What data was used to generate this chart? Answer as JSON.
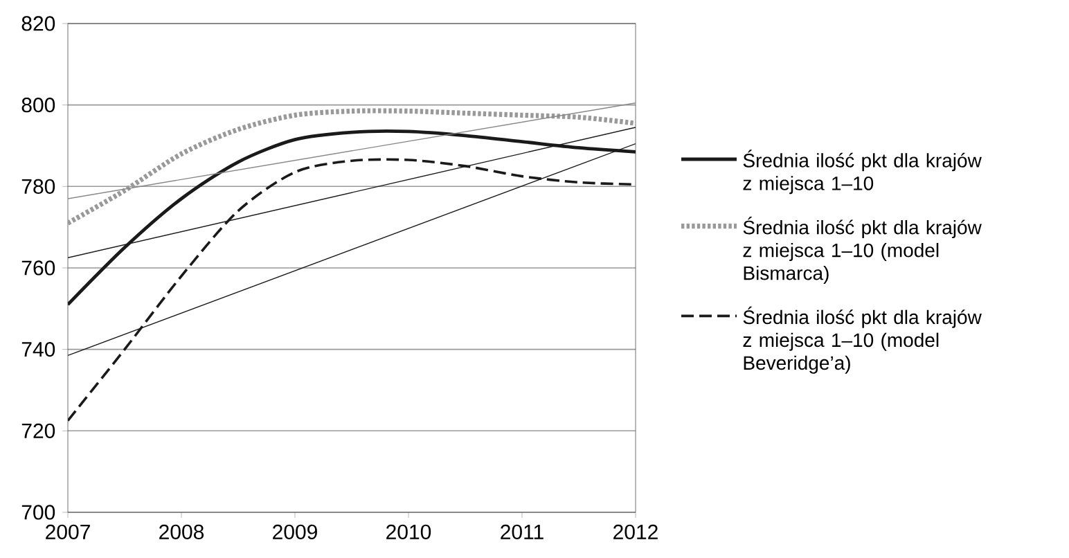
{
  "chart_data": {
    "type": "line",
    "xlim": [
      2007,
      2012
    ],
    "ylim": [
      700,
      820
    ],
    "xticks": [
      2007,
      2008,
      2009,
      2010,
      2011,
      2012
    ],
    "yticks": [
      700,
      720,
      740,
      760,
      780,
      800,
      820
    ],
    "grid": "y",
    "legend": "right",
    "marker": "none",
    "series": [
      {
        "name": "Średnia ilość pkt dla krajów z miejsca 1–10",
        "color": "#1a1a1a",
        "line_style": "solid",
        "x": [
          2007,
          2007.5,
          2008,
          2008.5,
          2009,
          2009.5,
          2010,
          2010.5,
          2011,
          2011.5,
          2012
        ],
        "values": [
          751,
          765,
          777,
          786,
          791.5,
          793.3,
          793.5,
          792.5,
          791,
          789.5,
          788.5
        ]
      },
      {
        "name": "Średnia ilość pkt dla krajów z miejsca 1–10 (model Bismarca)",
        "color": "#999999",
        "line_style": "dotted",
        "x": [
          2007,
          2007.5,
          2008,
          2008.5,
          2009,
          2009.5,
          2010,
          2010.5,
          2011,
          2011.5,
          2012
        ],
        "values": [
          771,
          779,
          788,
          794,
          797.5,
          798.5,
          798.5,
          798,
          797.5,
          797,
          795.5
        ]
      },
      {
        "name": "Średnia ilość pkt dla krajów z miejsca 1–10 (model Beveridge’a)",
        "color": "#1a1a1a",
        "line_style": "dashed",
        "x": [
          2007,
          2007.5,
          2008,
          2008.5,
          2009,
          2009.5,
          2010,
          2010.5,
          2011,
          2011.5,
          2012
        ],
        "values": [
          722.5,
          740,
          758,
          774,
          783.5,
          786.3,
          786.5,
          785,
          782.5,
          781,
          780.5
        ]
      },
      {
        "type": "line",
        "color": "#888888",
        "line_style": "solid",
        "x": [
          2007,
          2012
        ],
        "values": [
          777,
          800.5
        ]
      },
      {
        "type": "line",
        "color": "#1a1a1a",
        "line_style": "solid",
        "x": [
          2007,
          2012
        ],
        "values": [
          762.5,
          794.5
        ]
      },
      {
        "type": "line",
        "color": "#1a1a1a",
        "line_style": "solid",
        "x": [
          2007,
          2012
        ],
        "values": [
          738.5,
          790.5
        ]
      }
    ]
  }
}
